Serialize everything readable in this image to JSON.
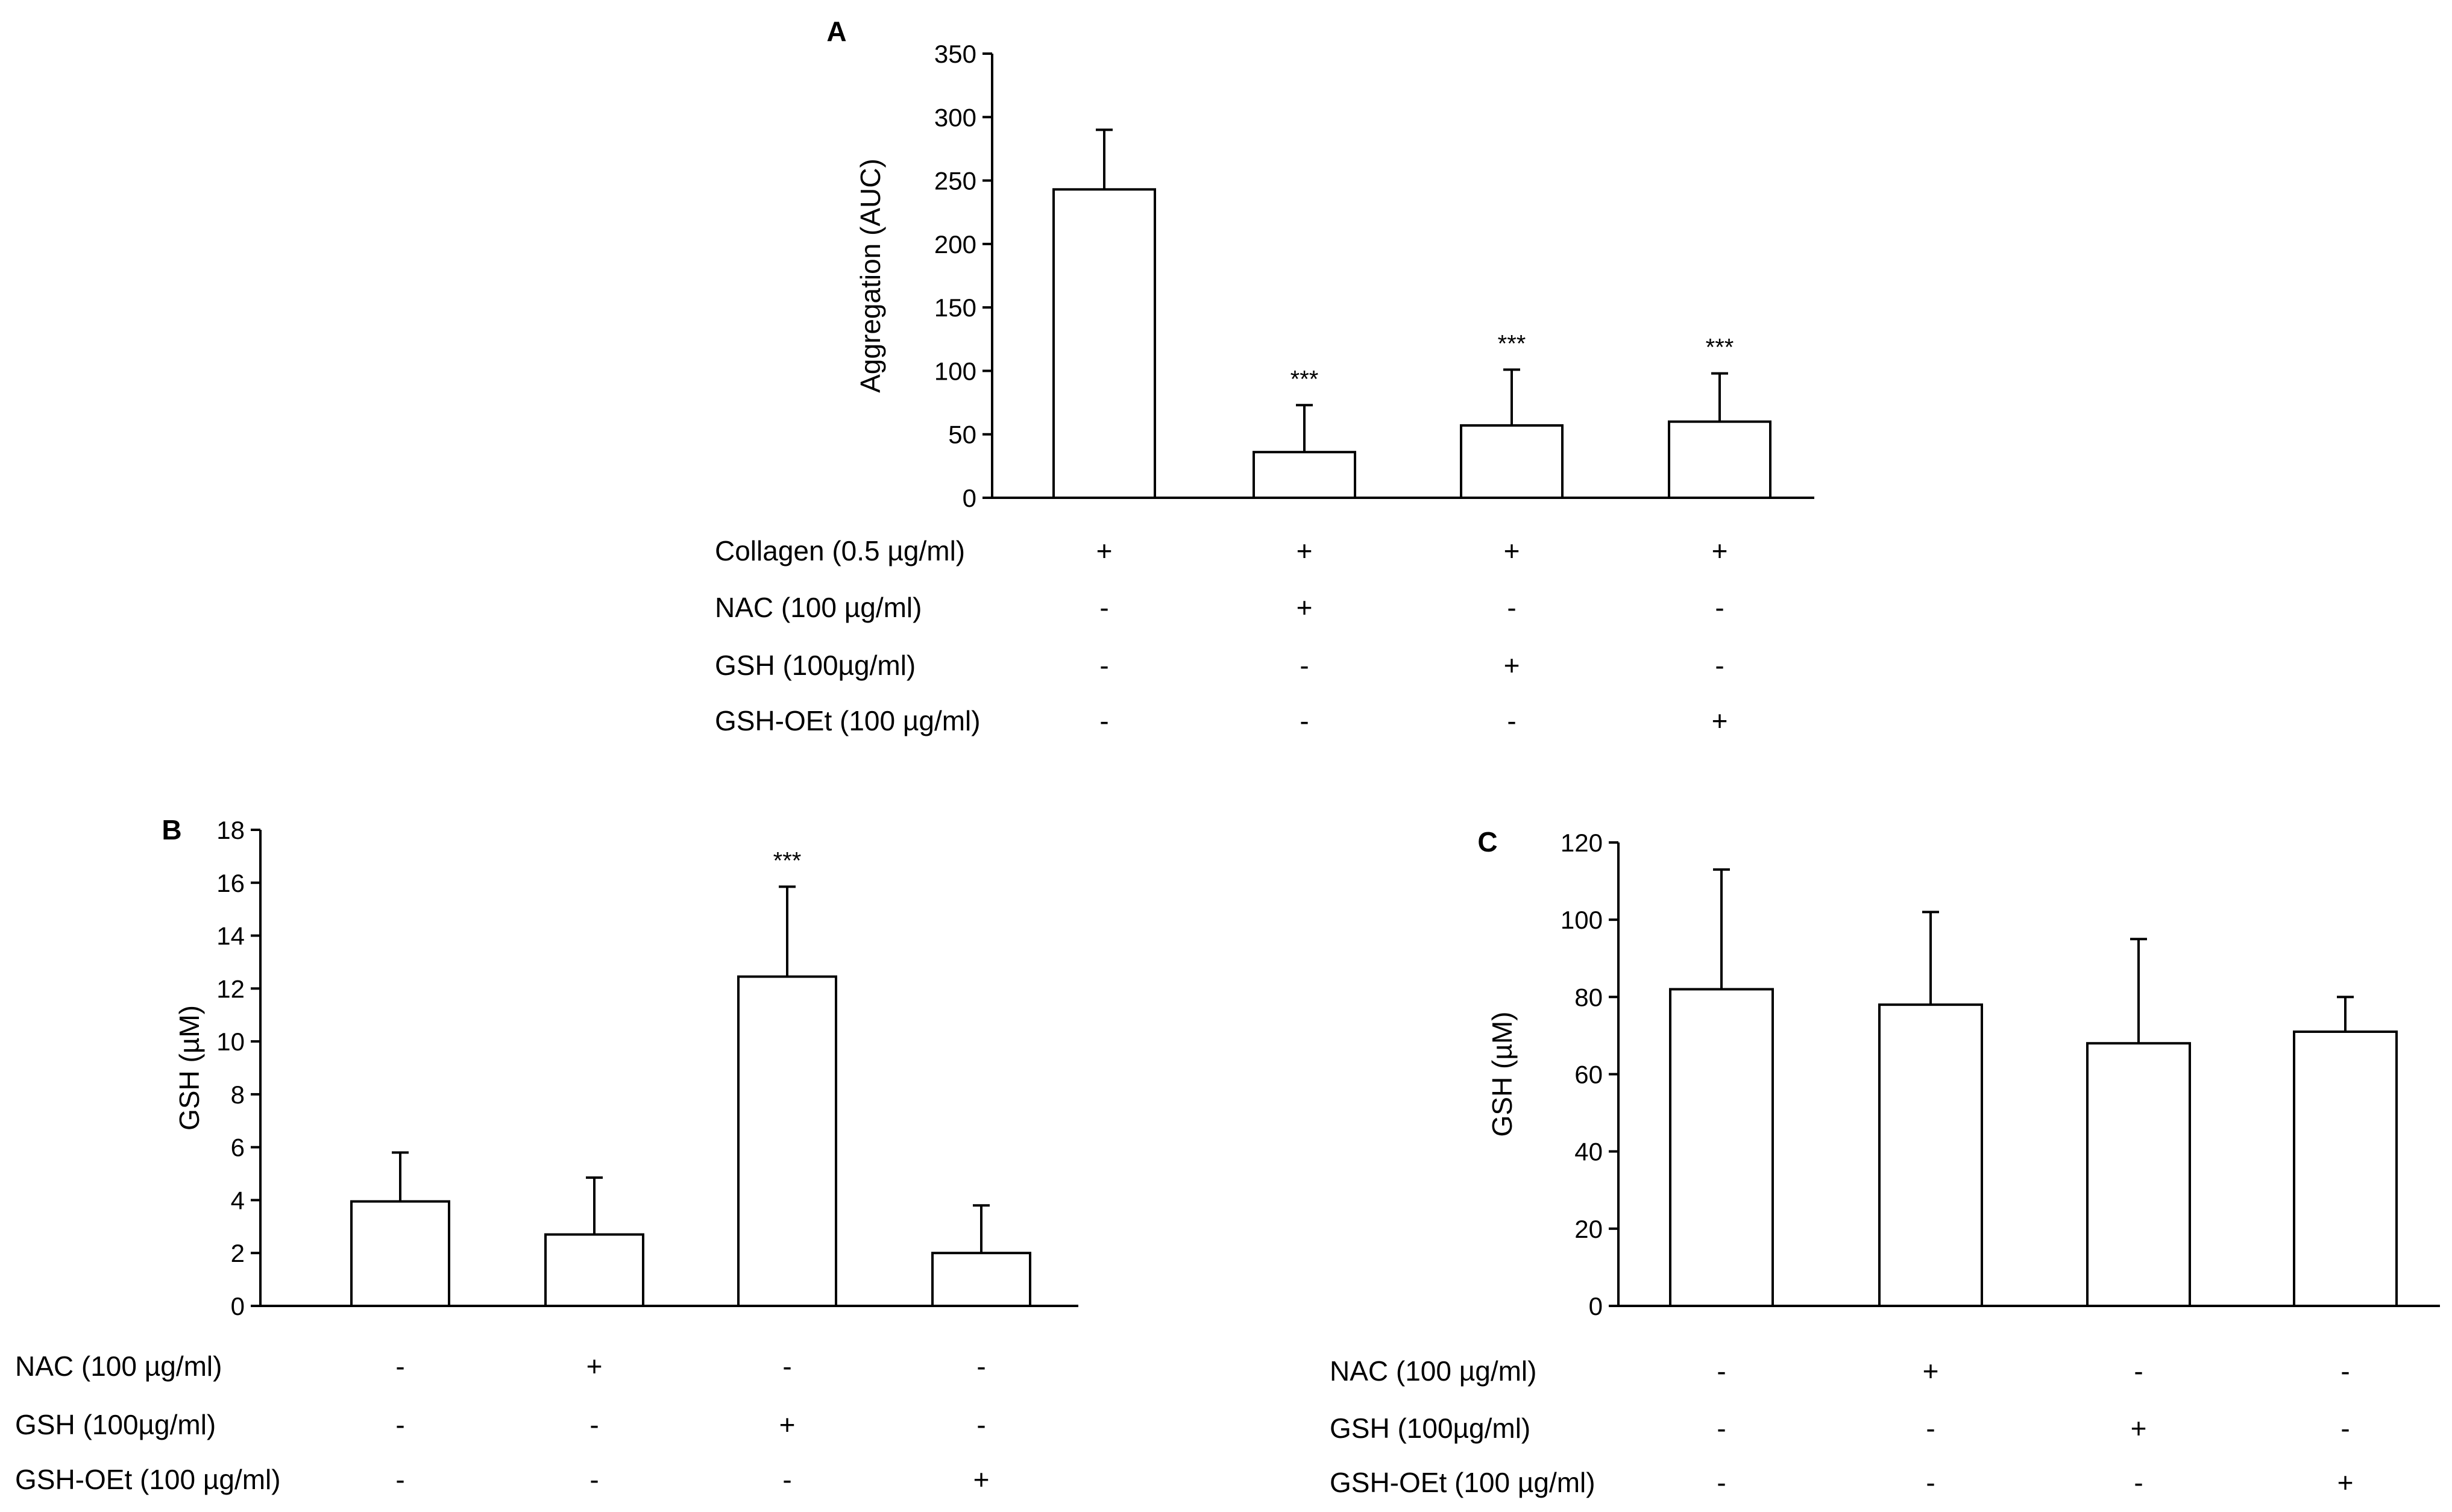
{
  "chart_data": [
    {
      "panel": "A",
      "type": "bar",
      "title": "",
      "xlabel": "",
      "ylabel": "Aggregation (AUC)",
      "ylim": [
        0,
        350
      ],
      "yticks": [
        0,
        50,
        100,
        150,
        200,
        250,
        300,
        350
      ],
      "values": [
        243,
        36,
        57,
        60
      ],
      "errors": [
        47,
        37,
        44,
        38
      ],
      "significance": [
        "",
        "***",
        "***",
        "***"
      ],
      "conditions": [
        {
          "label": "Collagen (0.5 µg/ml)",
          "marks": [
            "+",
            "+",
            "+",
            "+"
          ]
        },
        {
          "label": "NAC (100 µg/ml)",
          "marks": [
            "-",
            "+",
            "-",
            "-"
          ]
        },
        {
          "label": "GSH (100µg/ml)",
          "marks": [
            "-",
            "-",
            "+",
            "-"
          ]
        },
        {
          "label": "GSH-OEt (100 µg/ml)",
          "marks": [
            "-",
            "-",
            "-",
            "+"
          ]
        }
      ]
    },
    {
      "panel": "B",
      "type": "bar",
      "title": "",
      "xlabel": "",
      "ylabel": "GSH (µM)",
      "ylim": [
        0,
        18
      ],
      "yticks": [
        0,
        2,
        4,
        6,
        8,
        10,
        12,
        14,
        16,
        18
      ],
      "values": [
        3.95,
        2.7,
        12.45,
        2.0
      ],
      "errors": [
        1.85,
        2.15,
        3.4,
        1.8
      ],
      "significance": [
        "",
        "",
        "***",
        ""
      ],
      "conditions": [
        {
          "label": "NAC (100 µg/ml)",
          "marks": [
            "-",
            "+",
            "-",
            "-"
          ]
        },
        {
          "label": "GSH (100µg/ml)",
          "marks": [
            "-",
            "-",
            "+",
            "-"
          ]
        },
        {
          "label": "GSH-OEt (100 µg/ml)",
          "marks": [
            "-",
            "-",
            "-",
            "+"
          ]
        }
      ]
    },
    {
      "panel": "C",
      "type": "bar",
      "title": "",
      "xlabel": "",
      "ylabel": "GSH (µM)",
      "ylim": [
        0,
        120
      ],
      "yticks": [
        0,
        20,
        40,
        60,
        80,
        100,
        120
      ],
      "values": [
        82,
        78,
        68,
        71
      ],
      "errors": [
        31,
        24,
        27,
        9
      ],
      "significance": [
        "",
        "",
        "",
        ""
      ],
      "conditions": [
        {
          "label": "NAC (100 µg/ml)",
          "marks": [
            "-",
            "+",
            "-",
            "-"
          ]
        },
        {
          "label": "GSH (100µg/ml)",
          "marks": [
            "-",
            "-",
            "+",
            "-"
          ]
        },
        {
          "label": "GSH-OEt (100 µg/ml)",
          "marks": [
            "-",
            "-",
            "-",
            "+"
          ]
        }
      ]
    }
  ]
}
